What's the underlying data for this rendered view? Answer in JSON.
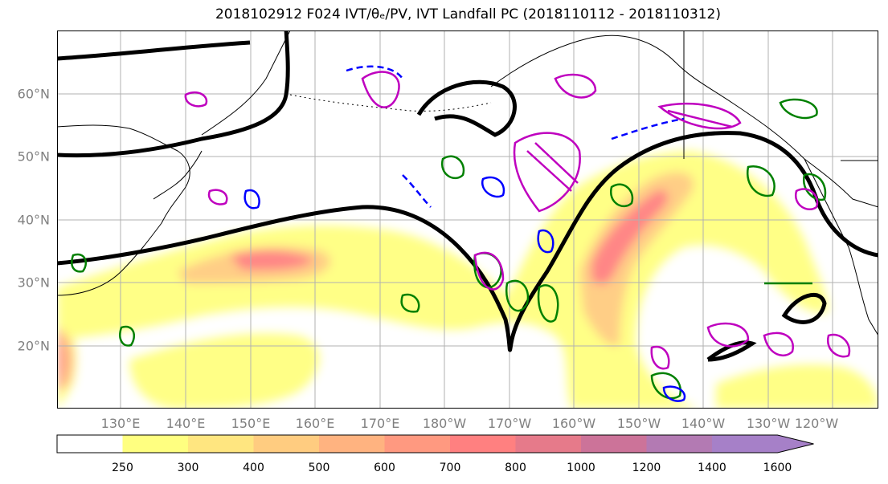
{
  "title": "2018102912 F024 IVT/θₑ/PV, IVT Landfall PC (2018110112 - 2018110312)",
  "map": {
    "lat_labels": [
      "60°N",
      "50°N",
      "40°N",
      "30°N",
      "20°N"
    ],
    "lon_labels": [
      "130°E",
      "140°E",
      "150°E",
      "160°E",
      "170°E",
      "180°W",
      "170°W",
      "160°W",
      "150°W",
      "140°W",
      "130°W",
      "120°W"
    ],
    "fill_variable": "IVT",
    "contour_colors": {
      "height_line": "#000000",
      "theta_e_warm": "#008000",
      "theta_e_cold": "#0000ff",
      "pv": "#bf00bf"
    }
  },
  "colorbar": {
    "levels": [
      250,
      300,
      400,
      500,
      600,
      700,
      800,
      1000,
      1200,
      1400,
      1600
    ],
    "tick_labels": [
      "250",
      "300",
      "400",
      "500",
      "600",
      "700",
      "800",
      "1000",
      "1200",
      "1400",
      "1600"
    ],
    "colors": [
      "#ffffff",
      "#ffff80",
      "#ffe680",
      "#ffcc80",
      "#ffb380",
      "#ff9980",
      "#ff8080",
      "#e67a8a",
      "#cc7399",
      "#b37ab3",
      "#a680c8"
    ],
    "extend": "max"
  }
}
